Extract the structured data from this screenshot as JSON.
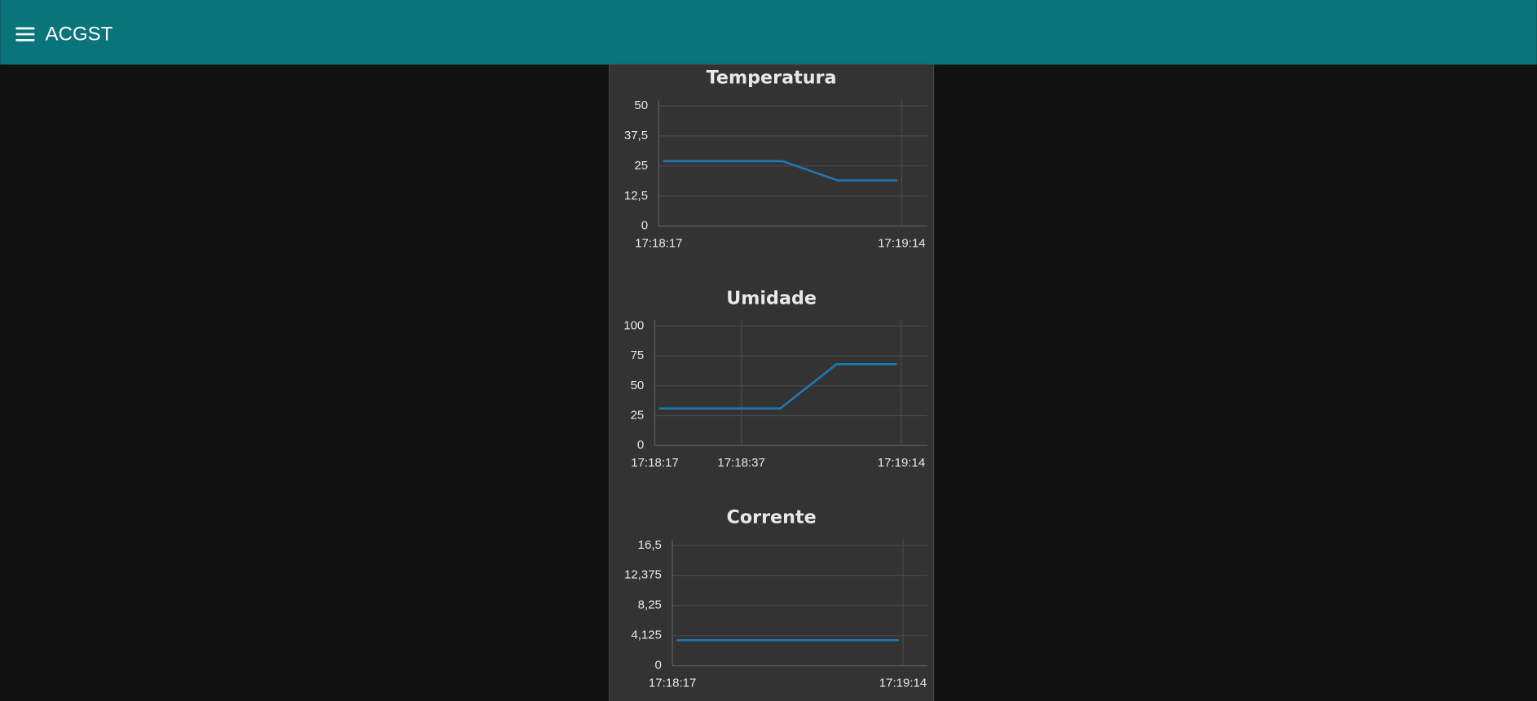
{
  "header": {
    "title": "ACGST"
  },
  "chart_data": [
    {
      "type": "line",
      "title": "Temperatura",
      "color": "#1f77b4",
      "grid": true,
      "x": [
        "17:18:18",
        "17:18:46",
        "17:18:59",
        "17:19:13"
      ],
      "values": [
        27,
        27,
        19,
        19
      ],
      "xlim": [
        "17:18:17",
        "17:19:20"
      ],
      "xticks": [
        "17:18:17",
        "17:19:14"
      ],
      "ylim": [
        0,
        50
      ],
      "yticks": [
        0,
        {
          "value": 12.5,
          "label": "12,5"
        },
        25,
        {
          "value": 37.5,
          "label": "37,5"
        },
        50
      ]
    },
    {
      "type": "line",
      "title": "Umidade",
      "color": "#1f77b4",
      "grid": true,
      "x": [
        "17:18:18",
        "17:18:46",
        "17:18:59",
        "17:19:13"
      ],
      "values": [
        31,
        31,
        68,
        68
      ],
      "xlim": [
        "17:18:17",
        "17:19:20"
      ],
      "xticks": [
        "17:18:17",
        "17:18:37",
        "17:19:14"
      ],
      "ylim": [
        0,
        100
      ],
      "yticks": [
        0,
        25,
        50,
        75,
        100
      ]
    },
    {
      "type": "line",
      "title": "Corrente",
      "color": "#1f77b4",
      "grid": true,
      "x": [
        "17:18:18",
        "17:18:46",
        "17:18:59",
        "17:19:13"
      ],
      "values": [
        3.5,
        3.5,
        3.5,
        3.5
      ],
      "xlim": [
        "17:18:17",
        "17:19:20"
      ],
      "xticks": [
        "17:18:17",
        "17:19:14"
      ],
      "ylim": [
        0,
        16.5
      ],
      "yticks": [
        0,
        {
          "value": 4.125,
          "label": "4,125"
        },
        {
          "value": 8.25,
          "label": "8,25"
        },
        {
          "value": 12.375,
          "label": "12,375"
        },
        {
          "value": 16.5,
          "label": "16,5"
        }
      ]
    }
  ]
}
